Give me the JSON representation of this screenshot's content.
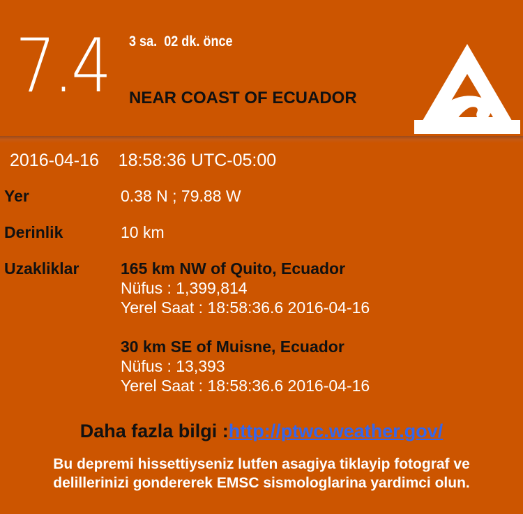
{
  "header": {
    "magnitude": "7.4",
    "time_ago": "3 sa.  02 dk. önce",
    "region": "NEAR COAST OF ECUADOR",
    "icon": "tsunami-warning-icon"
  },
  "event": {
    "datetime": "2016-04-16    18:58:36 UTC-05:00"
  },
  "details": {
    "location": {
      "label": "Yer",
      "value": "0.38 N ; 79.88 W"
    },
    "depth": {
      "label": "Derinlik",
      "value": "10 km"
    },
    "distances_label": "Uzakliklar",
    "distances": [
      {
        "name": "165 km NW of Quito, Ecuador",
        "population": "Nüfus : 1,399,814",
        "local_time": "Yerel Saat : 18:58:36.6 2016-04-16"
      },
      {
        "name": "30 km SE of Muisne, Ecuador",
        "population": "Nüfus : 13,393",
        "local_time": "Yerel Saat : 18:58:36.6 2016-04-16"
      }
    ]
  },
  "more_info": {
    "label": "Daha fazla bilgi :",
    "link_text": "http://ptwc.weather.gov/"
  },
  "footer": {
    "line1": "Bu depremi hissettiyseniz lutfen asagiya tiklayip fotograf ve",
    "line2": "delillerinizi gondererek EMSC sismologlarina yardimci olun."
  },
  "colors": {
    "background": "#cc5500",
    "text_dark": "#111111",
    "text_light": "#ffffff",
    "link": "#3366ee"
  }
}
